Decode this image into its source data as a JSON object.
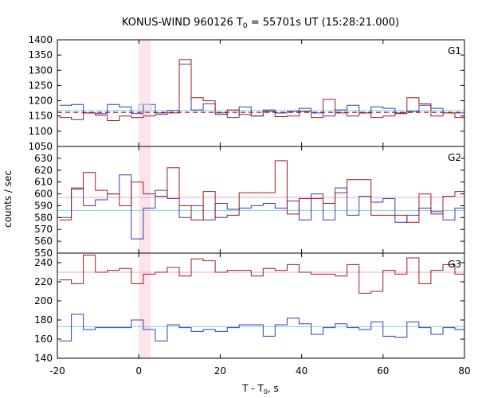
{
  "chart_data": {
    "type": "line",
    "title_main": "KONUS-WIND 960126 T",
    "title_sub": "0",
    "title_rest": " = 55701s UT (15:28:21.000)",
    "xlabel_main": "T - T",
    "xlabel_sub": "0",
    "xlabel_rest": ", s",
    "ylabel": "counts / sec",
    "xlim": [
      -20,
      80
    ],
    "x_ticks": [
      -20,
      0,
      20,
      40,
      60,
      80
    ],
    "bin_width": 2.944,
    "x_start": -19.5,
    "highlight_x": [
      0,
      2.944
    ],
    "colors": {
      "red": "#a01c1c",
      "blue": "#3a3ab8",
      "cyan": "#7ed0e8",
      "pink": "#f0a0d8",
      "highlight": "#fde4ea",
      "dashed": "#a01c1c"
    },
    "panels": [
      {
        "name": "G1",
        "ylim": [
          1050,
          1400
        ],
        "y_ticks": [
          1050,
          1100,
          1150,
          1200,
          1250,
          1300,
          1350,
          1400
        ],
        "mean_red": 1162,
        "mean_blue": 1168,
        "series": [
          {
            "color": "blue",
            "values": [
              1185,
              1188,
              1160,
              1158,
              1188,
              1180,
              1158,
              1188,
              1160,
              1168,
              1320,
              1170,
              1190,
              1160,
              1145,
              1180,
              1150,
              1170,
              1160,
              1165,
              1175,
              1160,
              1150,
              1170,
              1185,
              1160,
              1180,
              1175,
              1160,
              1165,
              1185,
              1175,
              1160,
              1160,
              1165
            ]
          },
          {
            "color": "red",
            "values": [
              1145,
              1138,
              1160,
              1152,
              1135,
              1150,
              1145,
              1150,
              1155,
              1160,
              1335,
              1210,
              1200,
              1155,
              1170,
              1155,
              1150,
              1165,
              1148,
              1150,
              1165,
              1145,
              1205,
              1160,
              1150,
              1160,
              1145,
              1150,
              1158,
              1210,
              1190,
              1150,
              1160,
              1145,
              1160
            ]
          }
        ]
      },
      {
        "name": "G2",
        "ylim": [
          550,
          640
        ],
        "y_ticks": [
          550,
          560,
          570,
          580,
          590,
          600,
          610,
          620,
          630
        ],
        "mean_red": 597,
        "mean_blue": 586,
        "series": [
          {
            "color": "blue",
            "values": [
              580,
              605,
              590,
              595,
              600,
              616,
              562,
              588,
              603,
              596,
              580,
              590,
              578,
              592,
              587,
              588,
              590,
              592,
              588,
              594,
              578,
              600,
              578,
              605,
              582,
              598,
              593,
              596,
              576,
              582,
              588,
              585,
              578,
              588,
              578
            ]
          },
          {
            "color": "red",
            "values": [
              578,
              604,
              618,
              603,
              600,
              590,
              610,
              600,
              598,
              622,
              590,
              578,
              602,
              580,
              582,
              601,
              601,
              601,
              628,
              583,
              596,
              596,
              592,
              601,
              612,
              612,
              582,
              582,
              582,
              576,
              600,
              583,
              598,
              602,
              598
            ]
          }
        ]
      },
      {
        "name": "G3",
        "ylim": [
          140,
          250
        ],
        "y_ticks": [
          140,
          160,
          180,
          200,
          220,
          240
        ],
        "mean_red": 230,
        "mean_blue": 173,
        "series": [
          {
            "color": "blue",
            "values": [
              158,
              186,
              170,
              172,
              172,
              172,
              180,
              170,
              158,
              175,
              172,
              168,
              170,
              168,
              172,
              175,
              175,
              163,
              175,
              182,
              176,
              165,
              172,
              176,
              172,
              170,
              178,
              163,
              162,
              178,
              172,
              165,
              172,
              170,
              175
            ]
          },
          {
            "color": "red",
            "values": [
              222,
              218,
              248,
              230,
              232,
              234,
              218,
              228,
              230,
              235,
              226,
              244,
              242,
              230,
              232,
              232,
              226,
              234,
              232,
              238,
              230,
              228,
              228,
              226,
              238,
              208,
              210,
              232,
              228,
              245,
              218,
              232,
              238,
              228,
              238
            ]
          }
        ]
      }
    ]
  }
}
